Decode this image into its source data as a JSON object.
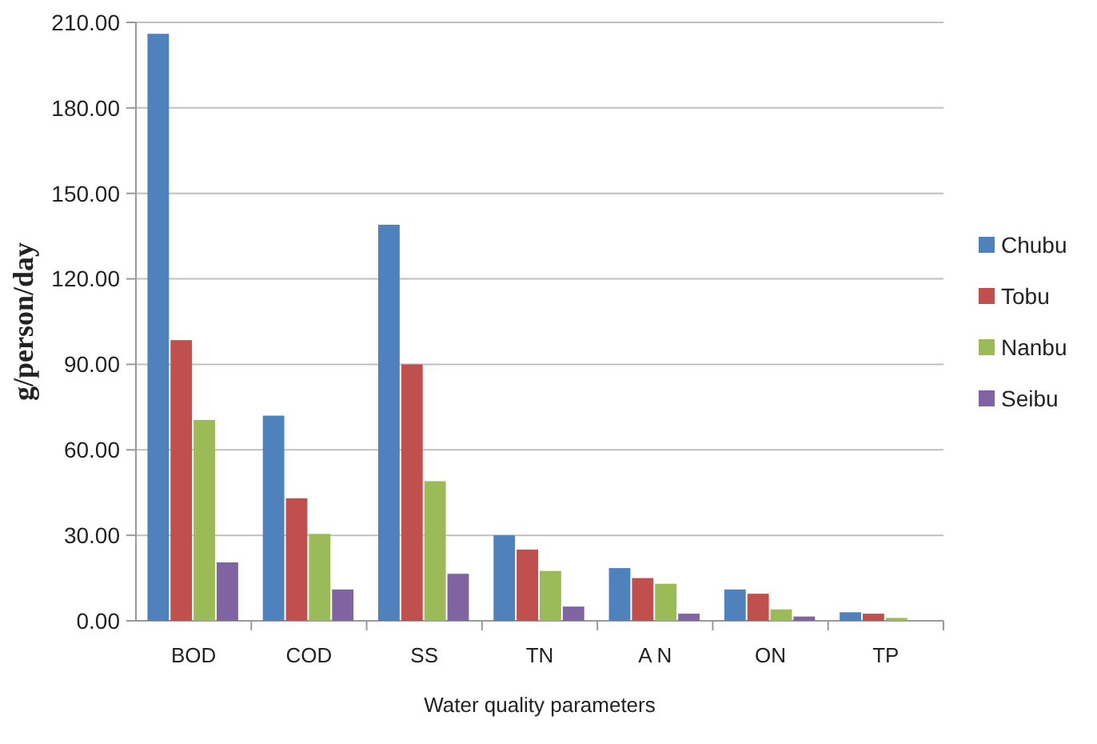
{
  "chart_data": {
    "type": "bar",
    "xlabel": "Water quality parameters",
    "ylabel": "g/person/day",
    "categories": [
      "BOD",
      "COD",
      "SS",
      "TN",
      "A N",
      "ON",
      "TP"
    ],
    "series": [
      {
        "name": "Chubu",
        "color": "#4f81bd",
        "values": [
          206,
          72,
          139,
          30,
          18.5,
          11,
          3
        ]
      },
      {
        "name": "Tobu",
        "color": "#c0504d",
        "values": [
          98.5,
          43,
          90,
          25,
          15,
          9.5,
          2.5
        ]
      },
      {
        "name": "Nanbu",
        "color": "#9bbb59",
        "values": [
          70.5,
          30.5,
          49,
          17.5,
          13,
          4,
          1
        ]
      },
      {
        "name": "Seibu",
        "color": "#8064a2",
        "values": [
          20.5,
          11,
          16.5,
          5,
          2.5,
          1.5,
          null
        ]
      }
    ],
    "ylim": [
      0,
      210
    ],
    "yticks": [
      {
        "value": 0,
        "label": "0.00"
      },
      {
        "value": 30,
        "label": "30.00"
      },
      {
        "value": 60,
        "label": "60.00"
      },
      {
        "value": 90,
        "label": "90.00"
      },
      {
        "value": 120,
        "label": "120.00"
      },
      {
        "value": 150,
        "label": "150.00"
      },
      {
        "value": 180,
        "label": "180.00"
      },
      {
        "value": 210,
        "label": "210.00"
      }
    ],
    "grid": "y",
    "legend": "right"
  }
}
